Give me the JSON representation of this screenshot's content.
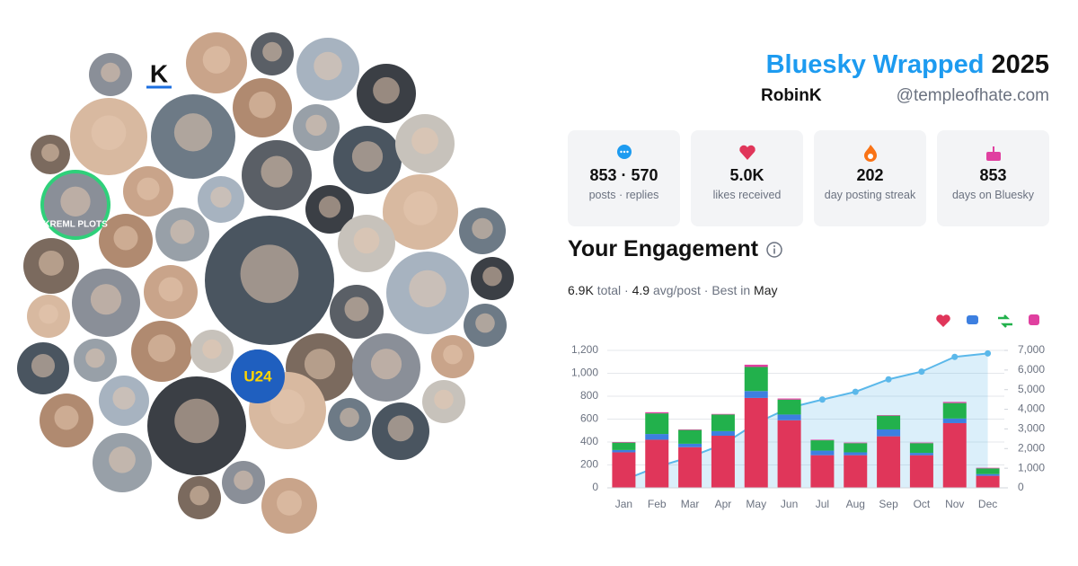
{
  "header": {
    "title": "Bluesky Wrapped",
    "year": "2025",
    "name": "RobinK",
    "handle": "@templeofhate.com"
  },
  "avatars": {
    "labels": [
      "K",
      "KREML PLOTS",
      "U24"
    ]
  },
  "stats": [
    {
      "value": "853 · 570",
      "label": "posts · replies"
    },
    {
      "value": "5.0K",
      "label": "likes received"
    },
    {
      "value": "202",
      "label": "day posting streak"
    },
    {
      "value": "853",
      "label": "days on Bluesky"
    }
  ],
  "engagement": {
    "title": "Your Engagement",
    "summary": [
      "6.9K",
      " total · ",
      "4.9",
      " avg/post · Best in ",
      "May"
    ]
  },
  "chart_data": {
    "type": "bar",
    "stacked": true,
    "grid": true,
    "categories": [
      "Jan",
      "Feb",
      "Mar",
      "Apr",
      "May",
      "Jun",
      "Jul",
      "Aug",
      "Sep",
      "Oct",
      "Nov",
      "Dec"
    ],
    "series": [
      {
        "color": "#e0365a",
        "values": [
          310,
          420,
          355,
          455,
          785,
          590,
          285,
          285,
          450,
          285,
          565,
          105
        ]
      },
      {
        "color": "#3d7fe0",
        "values": [
          20,
          50,
          30,
          40,
          60,
          50,
          40,
          25,
          60,
          20,
          40,
          15
        ]
      },
      {
        "color": "#22b14c",
        "values": [
          65,
          180,
          120,
          145,
          210,
          130,
          90,
          80,
          120,
          85,
          135,
          50
        ]
      },
      {
        "color": "#e040a0",
        "values": [
          5,
          10,
          5,
          5,
          20,
          10,
          5,
          5,
          5,
          5,
          10,
          5
        ]
      },
      {
        "type": "line",
        "axis": "y2",
        "color": "#5bb8ea",
        "values": [
          400,
          1060,
          1570,
          2215,
          3295,
          4075,
          4495,
          4890,
          5525,
          5920,
          6670,
          6845
        ]
      }
    ],
    "ylim": [
      0,
      1200
    ],
    "yticks": [
      0,
      200,
      400,
      600,
      800,
      {
        "value": 1000,
        "label": "1,000"
      },
      {
        "value": 1200,
        "label": "1,200"
      }
    ],
    "y2lim": [
      0,
      7000
    ],
    "y2ticks": [
      0,
      {
        "value": 1000,
        "label": "1,000"
      },
      {
        "value": 2000,
        "label": "2,000"
      },
      {
        "value": 3000,
        "label": "3,000"
      },
      {
        "value": 4000,
        "label": "4,000"
      },
      {
        "value": 5000,
        "label": "5,000"
      },
      {
        "value": 6000,
        "label": "6,000"
      },
      {
        "value": 7000,
        "label": "7,000"
      }
    ]
  }
}
